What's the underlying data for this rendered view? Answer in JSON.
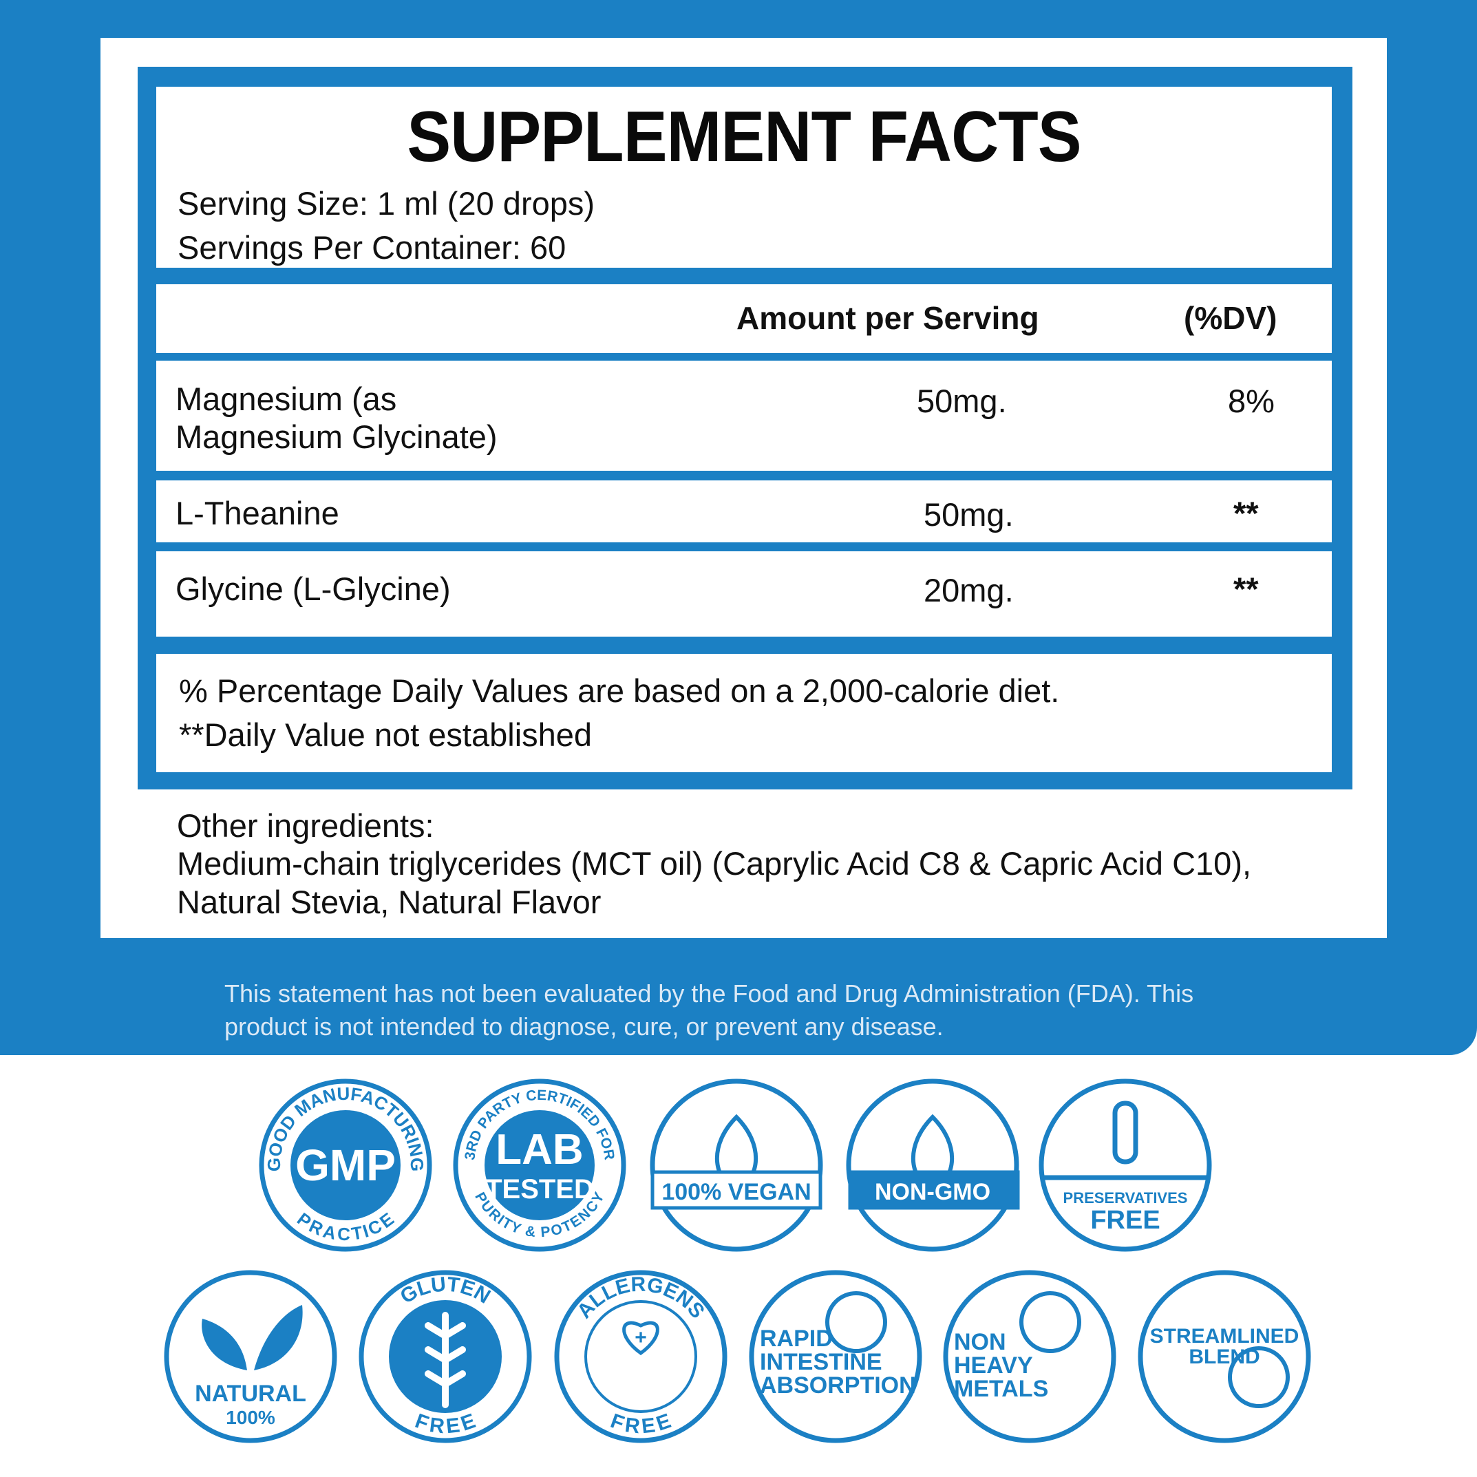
{
  "label": {
    "title": "SUPPLEMENT FACTS",
    "serving_size": "Serving Size: 1 ml (20 drops)",
    "servings_per_container": "Servings Per Container: 60",
    "header": {
      "amount": "Amount per Serving",
      "dv": "(%DV)"
    },
    "rows": [
      {
        "name_line1": "Magnesium (as",
        "name_line2": "Magnesium Glycinate)",
        "amount": "50mg.",
        "dv": "8%"
      },
      {
        "name_line1": "L-Theanine",
        "amount": "50mg.",
        "dv": "**"
      },
      {
        "name_line1": "Glycine (L-Glycine)",
        "amount": "20mg.",
        "dv": "**"
      }
    ],
    "footnote1": "% Percentage Daily Values are based on a 2,000-calorie diet.",
    "footnote2": "**Daily Value not established",
    "other_title": "Other ingredients:",
    "other_line1": "Medium-chain triglycerides (MCT oil) (Caprylic Acid C8 & Capric Acid C10),",
    "other_line2": "Natural Stevia, Natural Flavor"
  },
  "disclaimer": {
    "line1": "This statement has not been evaluated by the Food and Drug Administration (FDA). This",
    "line2": "product is not intended to diagnose, cure, or prevent any disease."
  },
  "badges": [
    {
      "name": "gmp",
      "main": "GMP",
      "ring_top": "GOOD MANUFACTURING",
      "ring_bottom": "PRACTICE",
      "icon": "gmp-seal-icon"
    },
    {
      "name": "lab-tested",
      "main": "LAB",
      "sub": "TESTED",
      "ring_top": "3RD PARTY CERTIFIED FOR",
      "ring_bottom": "PURITY & POTENCY",
      "icon": "lab-seal-icon"
    },
    {
      "name": "vegan",
      "main": "100% VEGAN",
      "icon": "leaf-icon"
    },
    {
      "name": "non-gmo",
      "main": "NON-GMO",
      "icon": "sprout-icon"
    },
    {
      "name": "preservatives-free",
      "main": "PRESERVATIVES",
      "sub": "FREE",
      "icon": "test-tube-icon"
    },
    {
      "name": "natural",
      "main": "NATURAL",
      "sub": "100%",
      "icon": "leaves-icon"
    },
    {
      "name": "gluten-free",
      "ring_top": "GLUTEN",
      "ring_bottom": "FREE",
      "icon": "wheat-icon"
    },
    {
      "name": "allergens-free",
      "ring_top": "ALLERGENS",
      "ring_bottom": "FREE",
      "icon": "heart-hands-icon"
    },
    {
      "name": "rapid-absorption",
      "lines": [
        "RAPID",
        "INTESTINE",
        "ABSORPTION"
      ],
      "icon": "intestine-icon"
    },
    {
      "name": "non-heavy-metals",
      "lines": [
        "NON",
        "HEAVY",
        "METALS"
      ],
      "icon": "metal-bars-icon"
    },
    {
      "name": "streamlined-blend",
      "lines": [
        "STREAMLINED",
        "BLEND"
      ],
      "icon": "blend-icon"
    }
  ],
  "colors": {
    "brand_blue": "#1b80c4",
    "text": "#111111",
    "disclaimer_text": "#dbe9f6"
  }
}
